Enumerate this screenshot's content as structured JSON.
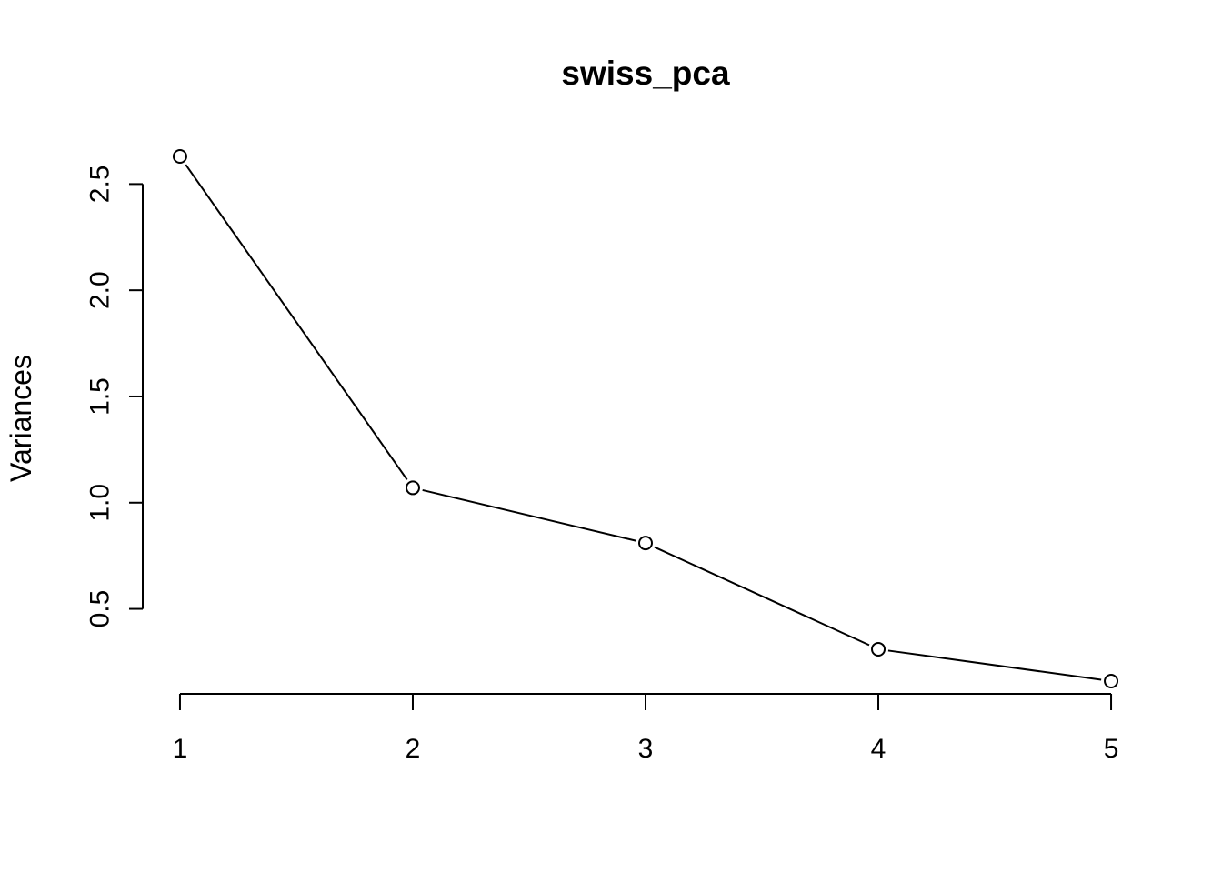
{
  "chart_data": {
    "type": "line",
    "title": "swiss_pca",
    "xlabel": "",
    "ylabel": "Variances",
    "x": [
      1,
      2,
      3,
      4,
      5
    ],
    "series": [
      {
        "values": [
          2.63,
          1.07,
          0.81,
          0.31,
          0.16
        ]
      }
    ],
    "xticks": [
      1,
      2,
      3,
      4,
      5
    ],
    "xtick_labels": [
      "1",
      "2",
      "3",
      "4",
      "5"
    ],
    "yticks": [
      0.5,
      1.0,
      1.5,
      2.0,
      2.5
    ],
    "ytick_labels": [
      "0.5",
      "1.0",
      "1.5",
      "2.0",
      "2.5"
    ],
    "xlim": [
      0.84,
      5.16
    ],
    "ylim": [
      0.1,
      2.69
    ],
    "marker": "open-circle",
    "grid": false,
    "legend": "none",
    "colors": {
      "line": "#000000",
      "marker_fill": "#ffffff",
      "background": "#ffffff"
    }
  }
}
